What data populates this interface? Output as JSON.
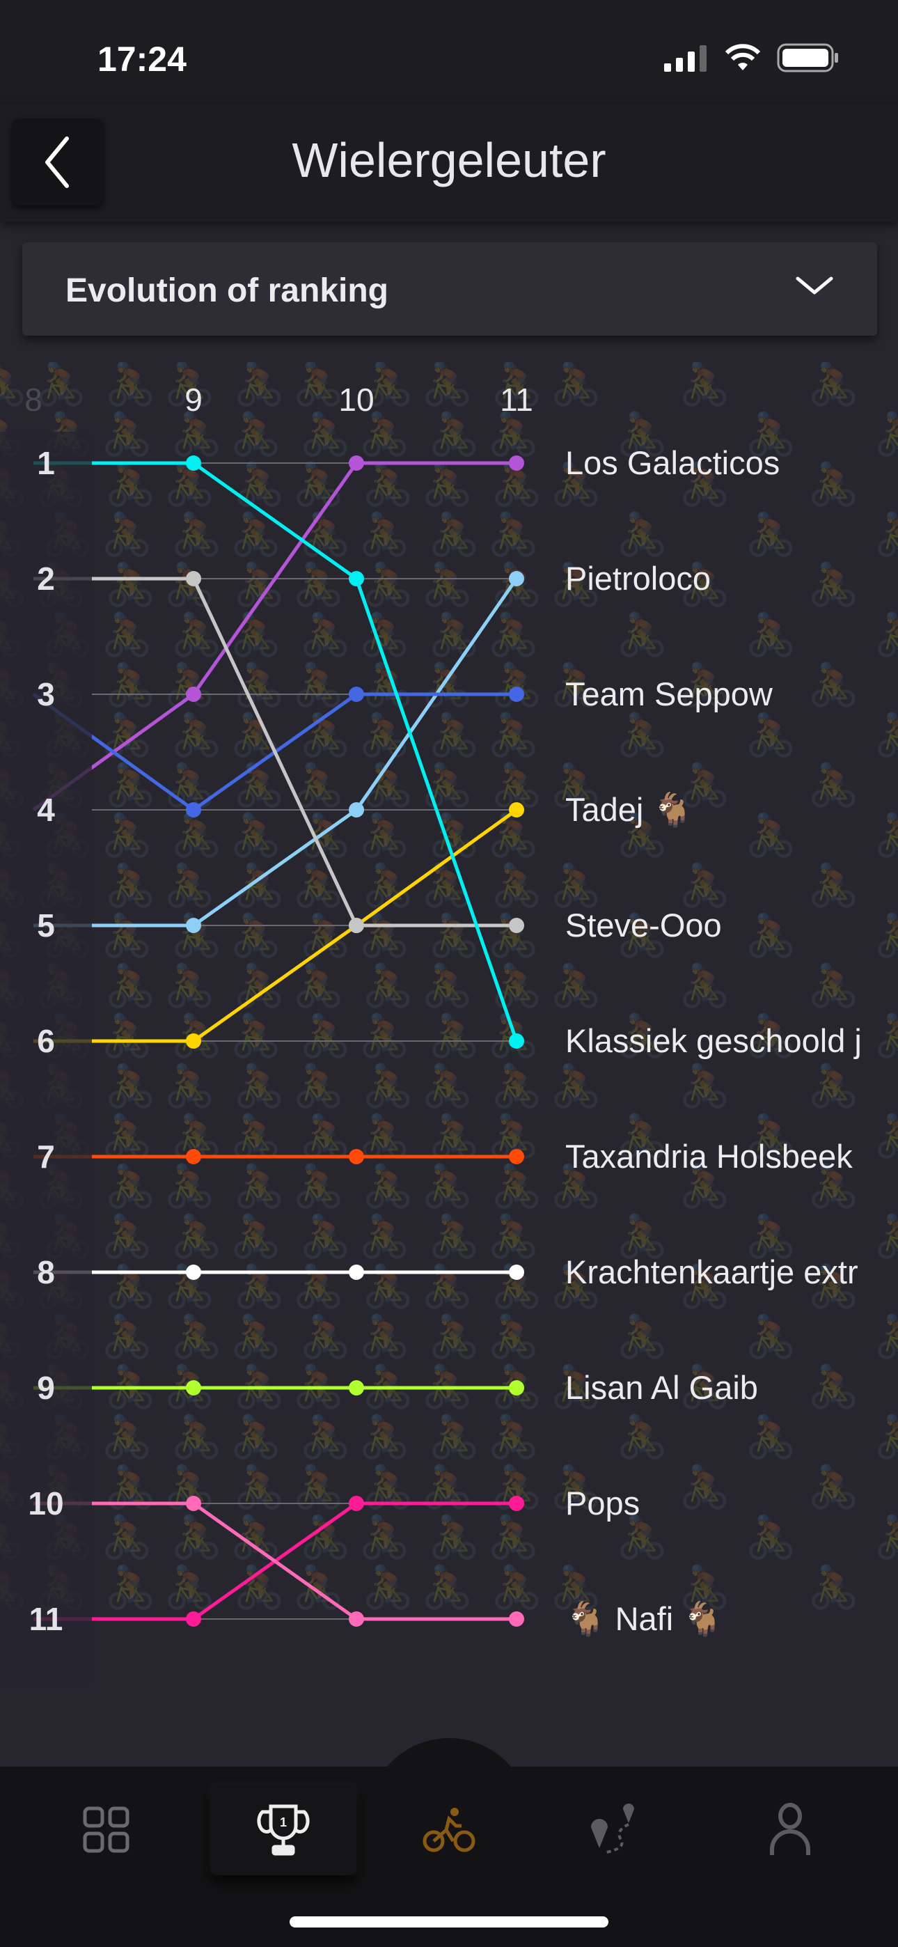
{
  "status_bar": {
    "time": "17:24"
  },
  "header": {
    "title": "Wielergeleuter",
    "back_icon": "chevron-left-icon"
  },
  "dropdown": {
    "selected": "Evolution of ranking"
  },
  "chart_data": {
    "type": "line",
    "title": "Evolution of ranking",
    "rounds": [
      "8",
      "9",
      "10",
      "11"
    ],
    "rank_labels": [
      "1",
      "2",
      "3",
      "4",
      "5",
      "6",
      "7",
      "8",
      "9",
      "10",
      "11"
    ],
    "ylim": [
      1,
      11
    ],
    "series": [
      {
        "name": "Los Galacticos",
        "color": "#b455d8",
        "ranks": [
          4,
          3,
          1,
          1
        ]
      },
      {
        "name": "Pietroloco",
        "color": "#8dcff7",
        "ranks": [
          5,
          5,
          4,
          2
        ]
      },
      {
        "name": "Team Seppow",
        "color": "#4468e3",
        "ranks": [
          3,
          4,
          3,
          3
        ]
      },
      {
        "name": "Tadej 🐐",
        "color": "#ffd400",
        "ranks": [
          6,
          6,
          5,
          4
        ]
      },
      {
        "name": "Steve-Ooo",
        "color": "#c6c6c6",
        "ranks": [
          2,
          2,
          5,
          5
        ]
      },
      {
        "name": "Klassiek geschoold j",
        "color": "#00f0f2",
        "ranks": [
          1,
          1,
          2,
          6
        ]
      },
      {
        "name": "Taxandria Holsbeek",
        "color": "#ff4a0a",
        "ranks": [
          7,
          7,
          7,
          7
        ]
      },
      {
        "name": "Krachtenkaartje extr",
        "color": "#ffffff",
        "ranks": [
          8,
          8,
          8,
          8
        ]
      },
      {
        "name": "Lisan Al Gaib",
        "color": "#b0ff2e",
        "ranks": [
          9,
          9,
          9,
          9
        ]
      },
      {
        "name": "Pops",
        "color": "#ff1a96",
        "ranks": [
          11,
          11,
          10,
          10
        ]
      },
      {
        "name": "🐐 Nafi 🐐",
        "color": "#ff6ab8",
        "ranks": [
          10,
          10,
          11,
          11
        ]
      }
    ]
  },
  "bottom_nav": {
    "items": [
      {
        "name": "dashboard",
        "icon": "grid-icon"
      },
      {
        "name": "ranking",
        "icon": "trophy-icon",
        "active": true
      },
      {
        "name": "ride",
        "icon": "bicycle-icon"
      },
      {
        "name": "routes",
        "icon": "route-icon"
      },
      {
        "name": "profile",
        "icon": "user-icon"
      }
    ]
  }
}
